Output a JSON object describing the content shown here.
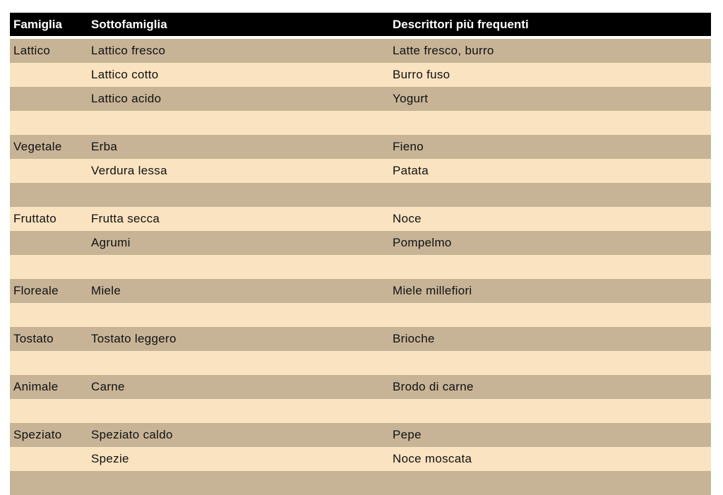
{
  "headers": [
    "Famiglia",
    "Sottofamiglia",
    "Descrittori più frequenti"
  ],
  "rows": [
    [
      "Lattico",
      "Lattico fresco",
      "Latte fresco, burro"
    ],
    [
      "",
      "Lattico cotto",
      "Burro fuso"
    ],
    [
      "",
      "Lattico acido",
      "Yogurt"
    ],
    [
      "",
      "",
      ""
    ],
    [
      "Vegetale",
      "Erba",
      "Fieno"
    ],
    [
      "",
      "Verdura lessa",
      "Patata"
    ],
    [
      "",
      "",
      ""
    ],
    [
      "Fruttato",
      "Frutta secca",
      "Noce"
    ],
    [
      "",
      "Agrumi",
      "Pompelmo"
    ],
    [
      "",
      "",
      ""
    ],
    [
      "Floreale",
      "Miele",
      "Miele millefiori"
    ],
    [
      "",
      "",
      ""
    ],
    [
      "Tostato",
      "Tostato leggero",
      "Brioche"
    ],
    [
      "",
      "",
      ""
    ],
    [
      "Animale",
      "Carne",
      "Brodo di carne"
    ],
    [
      "",
      "",
      ""
    ],
    [
      "Speziato",
      "Speziato caldo",
      "Pepe"
    ],
    [
      "",
      "Spezie",
      "Noce moscata"
    ],
    [
      "",
      "",
      ""
    ]
  ],
  "colors": {
    "header": "#000000",
    "row_dark": "#c7b496",
    "row_light": "#fae3c0"
  }
}
